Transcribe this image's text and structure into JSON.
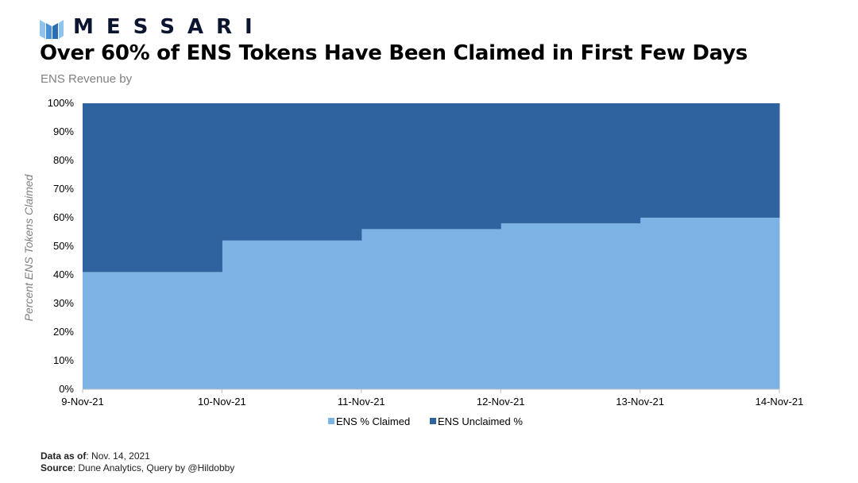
{
  "brand": {
    "name": "MESSARI",
    "logo_icon": "messari-logo-icon",
    "accent": "#2a6db4"
  },
  "header": {
    "title": "Over 60% of ENS Tokens Have Been Claimed in First Few Days",
    "subtitle": "ENS Revenue by"
  },
  "footer": {
    "data_as_of_label": "Data as of",
    "data_as_of_value": ": Nov. 14, 2021",
    "source_label": "Source",
    "source_value": ": Dune Analytics, Query by @Hildobby"
  },
  "chart_data": {
    "type": "area",
    "stacked": true,
    "percent": true,
    "ylabel": "Percent ENS Tokens Claimed",
    "xlabel": "",
    "ylim": [
      0,
      100
    ],
    "yticks": [
      "0%",
      "10%",
      "20%",
      "30%",
      "40%",
      "50%",
      "60%",
      "70%",
      "80%",
      "90%",
      "100%"
    ],
    "categories": [
      "9-Nov-21",
      "10-Nov-21",
      "11-Nov-21",
      "12-Nov-21",
      "13-Nov-21",
      "14-Nov-21"
    ],
    "series": [
      {
        "name": "ENS % Claimed",
        "color": "#7ab3e4",
        "values": [
          41,
          52,
          56,
          58,
          60,
          60
        ]
      },
      {
        "name": "ENS Unclaimed %",
        "color": "#2e63a0",
        "values": [
          59,
          48,
          44,
          42,
          40,
          40
        ]
      }
    ],
    "grid": false,
    "legend": "bottom"
  }
}
